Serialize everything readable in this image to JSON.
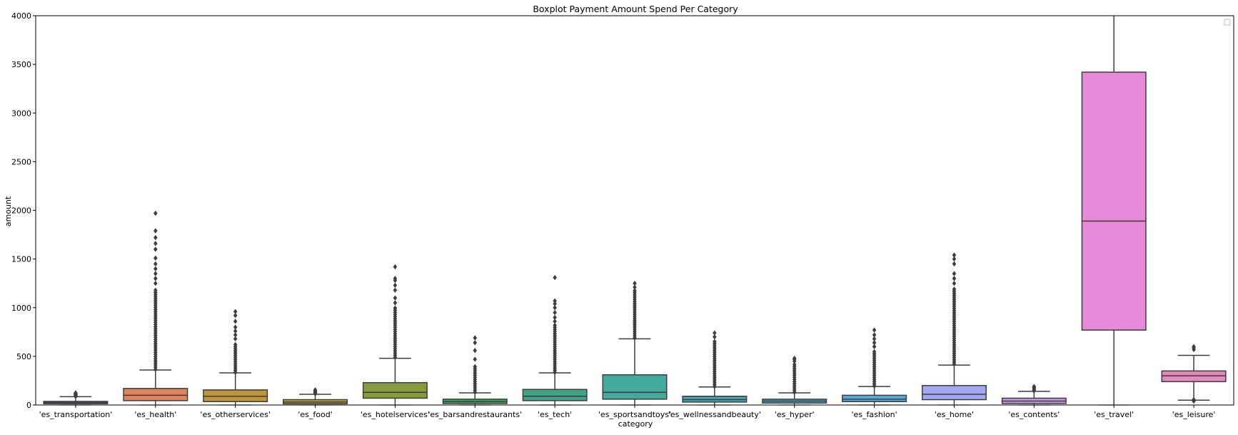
{
  "chart_data": {
    "type": "boxplot",
    "title": "Boxplot Payment Amount Spend Per Category",
    "xlabel": "category",
    "ylabel": "amount",
    "ylim": [
      0,
      4000
    ],
    "yticks": [
      0,
      500,
      1000,
      1500,
      2000,
      2500,
      3000,
      3500,
      4000
    ],
    "legend": {
      "placement": "top-right",
      "entries": []
    },
    "categories": [
      "'es_transportation'",
      "'es_health'",
      "'es_otherservices'",
      "'es_food'",
      "'es_hotelservices'",
      "'es_barsandrestaurants'",
      "'es_tech'",
      "'es_sportsandtoys'",
      "'es_wellnessandbeauty'",
      "'es_hyper'",
      "'es_fashion'",
      "'es_home'",
      "'es_contents'",
      "'es_travel'",
      "'es_leisure'"
    ],
    "boxes": [
      {
        "category": "'es_transportation'",
        "color": "#5f7fb5",
        "min": 0,
        "q1": 13,
        "median": 26,
        "q3": 37,
        "max": 85,
        "outliers": [
          88,
          92,
          96,
          100,
          104,
          108,
          112,
          116,
          120,
          125
        ]
      },
      {
        "category": "'es_health'",
        "color": "#e1855f",
        "min": 0,
        "q1": 45,
        "median": 100,
        "q3": 170,
        "max": 360,
        "outliers_range": [
          365,
          1200
        ],
        "outliers": [
          1250,
          1300,
          1350,
          1400,
          1450,
          1510,
          1600,
          1660,
          1720,
          1790,
          1970
        ]
      },
      {
        "category": "'es_otherservices'",
        "color": "#c0953c",
        "min": 0,
        "q1": 35,
        "median": 90,
        "q3": 155,
        "max": 330,
        "outliers_range": [
          335,
          640
        ],
        "outliers": [
          680,
          720,
          760,
          800,
          860,
          920,
          960
        ]
      },
      {
        "category": "'es_food'",
        "color": "#ba9b41",
        "min": 0,
        "q1": 12,
        "median": 30,
        "q3": 55,
        "max": 110,
        "outliers": [
          115,
          122,
          130,
          138,
          145,
          155
        ]
      },
      {
        "category": "'es_hotelservices'",
        "color": "#899c3c",
        "min": 0,
        "q1": 70,
        "median": 130,
        "q3": 230,
        "max": 480,
        "outliers_range": [
          490,
          1000
        ],
        "outliers": [
          1050,
          1100,
          1180,
          1230,
          1280,
          1300,
          1420
        ]
      },
      {
        "category": "'es_barsandrestaurants'",
        "color": "#3fa462",
        "min": 0,
        "q1": 15,
        "median": 35,
        "q3": 60,
        "max": 125,
        "outliers_range": [
          130,
          400
        ],
        "outliers": [
          470,
          560,
          640,
          690
        ]
      },
      {
        "category": "'es_tech'",
        "color": "#41a28a",
        "min": 0,
        "q1": 45,
        "median": 90,
        "q3": 160,
        "max": 330,
        "outliers_range": [
          335,
          820
        ],
        "outliers": [
          860,
          900,
          950,
          1000,
          1040,
          1070,
          1310
        ]
      },
      {
        "category": "'es_sportsandtoys'",
        "color": "#44a99b",
        "min": 0,
        "q1": 60,
        "median": 130,
        "q3": 310,
        "max": 680,
        "outliers_range": [
          690,
          1190
        ],
        "outliers": [
          1210,
          1250
        ]
      },
      {
        "category": "'es_wellnessandbeauty'",
        "color": "#46a5b8",
        "min": 0,
        "q1": 30,
        "median": 55,
        "q3": 90,
        "max": 185,
        "outliers_range": [
          190,
          670
        ],
        "outliers": [
          700,
          740
        ]
      },
      {
        "category": "'es_hyper'",
        "color": "#4aa4c8",
        "min": 0,
        "q1": 20,
        "median": 40,
        "q3": 60,
        "max": 125,
        "outliers_range": [
          130,
          430
        ],
        "outliers": [
          450,
          470,
          480
        ]
      },
      {
        "category": "'es_fashion'",
        "color": "#5aa8e0",
        "min": 0,
        "q1": 35,
        "median": 60,
        "q3": 100,
        "max": 190,
        "outliers_range": [
          195,
          560
        ],
        "outliers": [
          600,
          640,
          680,
          720,
          770
        ]
      },
      {
        "category": "'es_home'",
        "color": "#a3a8f2",
        "min": 0,
        "q1": 55,
        "median": 110,
        "q3": 200,
        "max": 410,
        "outliers_range": [
          420,
          1200
        ],
        "outliers": [
          1250,
          1300,
          1350,
          1450,
          1500,
          1540
        ]
      },
      {
        "category": "'es_contents'",
        "color": "#c99ae8",
        "min": 0,
        "q1": 15,
        "median": 40,
        "q3": 70,
        "max": 140,
        "outliers": [
          145,
          150,
          160,
          170,
          180,
          190
        ]
      },
      {
        "category": "'es_travel'",
        "color": "#e78ad9",
        "min": 0,
        "q1": 770,
        "median": 1890,
        "q3": 3420,
        "max": 4000,
        "outliers": []
      },
      {
        "category": "'es_leisure'",
        "color": "#e48bbe",
        "min": 50,
        "q1": 240,
        "median": 300,
        "q3": 350,
        "max": 510,
        "outliers": [
          40,
          55,
          570,
          590,
          600
        ]
      }
    ]
  }
}
